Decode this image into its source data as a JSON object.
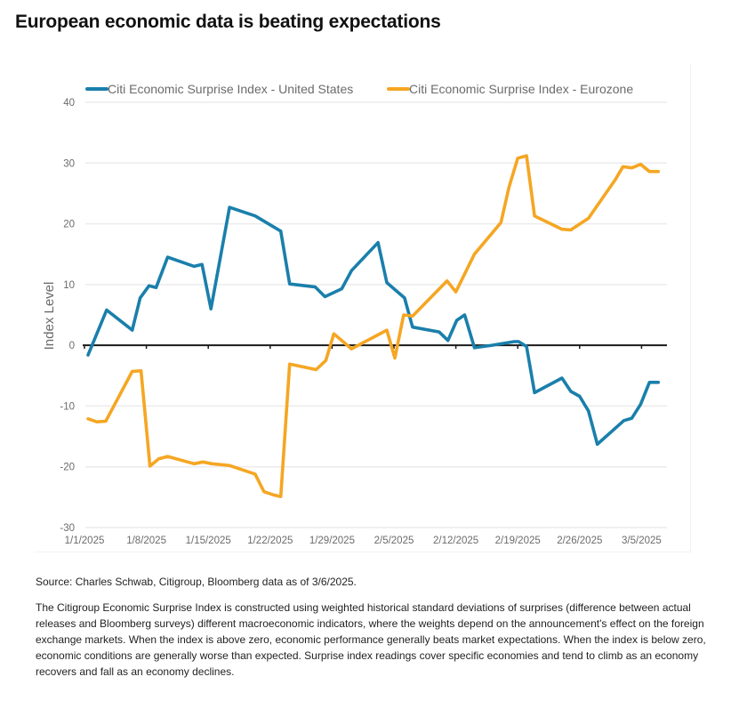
{
  "page": {
    "title": "European economic data is beating expectations",
    "source": "Source: Charles Schwab, Citigroup, Bloomberg data as of 3/6/2025.",
    "note": "The Citigroup Economic Surprise Index is constructed using weighted historical standard deviations of surprises (difference between actual releases and Bloomberg surveys) different macroeconomic indicators, where the weights depend on the announcement's effect on the foreign exchange markets. When the index is above zero, economic performance generally beats market expectations. When the index is below zero, economic conditions are generally worse than expected. Surprise index readings cover specific economies and tend to climb as an economy recovers and fall as an economy declines."
  },
  "chart_data": {
    "type": "line",
    "title": "European economic data is beating expectations",
    "xlabel": "",
    "ylabel": "Index Level",
    "ylim": [
      -30,
      40
    ],
    "yticks": [
      40,
      30,
      20,
      10,
      0,
      -10,
      -20,
      -30
    ],
    "xlim_days": [
      0,
      66
    ],
    "xticks": [
      {
        "day": 0,
        "label": "1/1/2025"
      },
      {
        "day": 7,
        "label": "1/8/2025"
      },
      {
        "day": 14,
        "label": "1/15/2025"
      },
      {
        "day": 21,
        "label": "1/22/2025"
      },
      {
        "day": 28,
        "label": "1/29/2025"
      },
      {
        "day": 35,
        "label": "2/5/2025"
      },
      {
        "day": 42,
        "label": "2/12/2025"
      },
      {
        "day": 49,
        "label": "2/19/2025"
      },
      {
        "day": 56,
        "label": "2/26/2025"
      },
      {
        "day": 63,
        "label": "3/5/2025"
      }
    ],
    "grid": true,
    "legend": "top",
    "colors": {
      "us": "#1a7fab",
      "eurozone": "#f5a623",
      "zero_line": "#1a1a1a",
      "grid": "#ebebeb"
    },
    "series": [
      {
        "name": "Citi Economic Surprise Index - United States",
        "key": "us",
        "points": [
          [
            0.4,
            -1.6
          ],
          [
            2.5,
            5.8
          ],
          [
            5.4,
            2.5
          ],
          [
            6.3,
            7.8
          ],
          [
            7.3,
            9.8
          ],
          [
            8.1,
            9.5
          ],
          [
            9.4,
            14.5
          ],
          [
            12.4,
            13.0
          ],
          [
            13.3,
            13.3
          ],
          [
            14.3,
            6.0
          ],
          [
            16.4,
            22.7
          ],
          [
            19.3,
            21.3
          ],
          [
            20.8,
            20.0
          ],
          [
            22.2,
            18.8
          ],
          [
            23.2,
            10.1
          ],
          [
            26.1,
            9.6
          ],
          [
            27.2,
            8.0
          ],
          [
            29.1,
            9.3
          ],
          [
            30.2,
            12.3
          ],
          [
            33.2,
            16.9
          ],
          [
            34.2,
            10.3
          ],
          [
            36.2,
            7.8
          ],
          [
            37.1,
            3.0
          ],
          [
            40.1,
            2.2
          ],
          [
            41.1,
            0.8
          ],
          [
            42.1,
            4.1
          ],
          [
            43.0,
            5.0
          ],
          [
            44.1,
            -0.4
          ],
          [
            46.1,
            0.0
          ],
          [
            48.6,
            0.6
          ],
          [
            49.1,
            0.6
          ],
          [
            50.0,
            -0.2
          ],
          [
            50.9,
            -7.8
          ],
          [
            54.0,
            -5.4
          ],
          [
            55.0,
            -7.6
          ],
          [
            56.0,
            -8.4
          ],
          [
            57.0,
            -10.8
          ],
          [
            58.0,
            -16.3
          ],
          [
            61.0,
            -12.4
          ],
          [
            61.9,
            -12.0
          ],
          [
            62.9,
            -9.7
          ],
          [
            63.9,
            -6.1
          ],
          [
            64.9,
            -6.1
          ]
        ]
      },
      {
        "name": "Citi Economic Surprise Index - Eurozone",
        "key": "eurozone",
        "points": [
          [
            0.4,
            -12.1
          ],
          [
            1.4,
            -12.6
          ],
          [
            2.4,
            -12.5
          ],
          [
            5.4,
            -4.3
          ],
          [
            6.4,
            -4.2
          ],
          [
            7.4,
            -19.9
          ],
          [
            8.4,
            -18.7
          ],
          [
            9.4,
            -18.3
          ],
          [
            12.4,
            -19.5
          ],
          [
            13.4,
            -19.2
          ],
          [
            14.4,
            -19.5
          ],
          [
            16.4,
            -19.8
          ],
          [
            19.3,
            -21.2
          ],
          [
            20.3,
            -24.1
          ],
          [
            21.3,
            -24.6
          ],
          [
            22.2,
            -24.9
          ],
          [
            23.2,
            -3.1
          ],
          [
            26.2,
            -4.0
          ],
          [
            27.3,
            -2.5
          ],
          [
            28.2,
            1.9
          ],
          [
            30.2,
            -0.6
          ],
          [
            34.2,
            2.5
          ],
          [
            35.1,
            -2.1
          ],
          [
            36.1,
            5.0
          ],
          [
            37.1,
            4.8
          ],
          [
            41.0,
            10.6
          ],
          [
            42.0,
            8.8
          ],
          [
            44.1,
            15.0
          ],
          [
            47.1,
            20.2
          ],
          [
            48.0,
            26.0
          ],
          [
            49.0,
            30.8
          ],
          [
            50.0,
            31.2
          ],
          [
            50.9,
            21.3
          ],
          [
            54.0,
            19.1
          ],
          [
            55.0,
            19.0
          ],
          [
            57.0,
            20.9
          ],
          [
            60.0,
            27.2
          ],
          [
            60.9,
            29.4
          ],
          [
            61.9,
            29.2
          ],
          [
            62.9,
            29.8
          ],
          [
            63.9,
            28.6
          ],
          [
            64.9,
            28.6
          ]
        ]
      }
    ]
  }
}
